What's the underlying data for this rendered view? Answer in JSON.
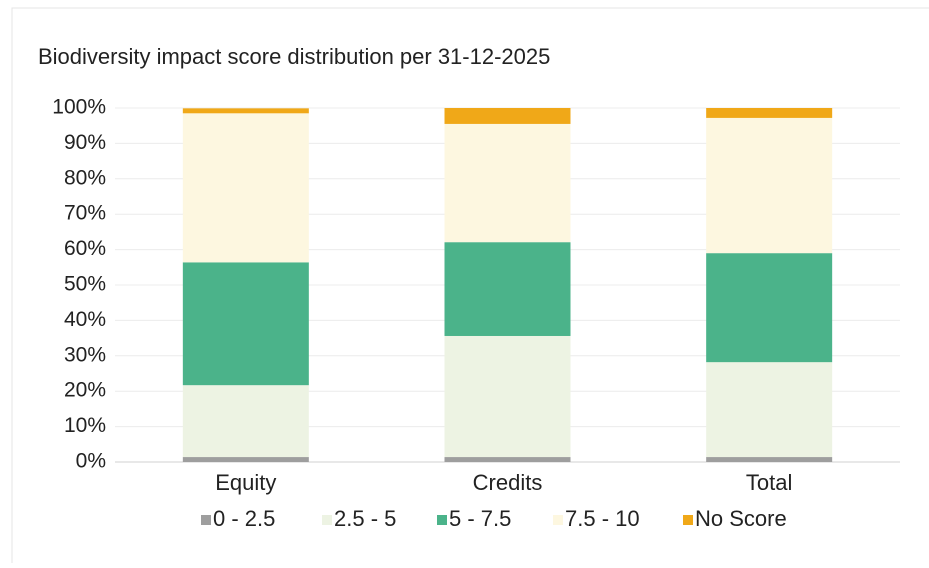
{
  "chart_data": {
    "type": "stacked_bar",
    "title": "Biodiversity impact score distribution per 31-12-2025",
    "categories": [
      "Equity",
      "Credits",
      "Total"
    ],
    "series": [
      {
        "name": "0 - 2.5",
        "color": "#9e9e9e",
        "values": [
          1.4,
          1.4,
          1.4
        ]
      },
      {
        "name": "2.5 - 5",
        "color": "#edf3e3",
        "values": [
          20.3,
          34.2,
          26.8
        ]
      },
      {
        "name": "5 - 7.5",
        "color": "#4bb38a",
        "values": [
          34.7,
          26.5,
          30.8
        ]
      },
      {
        "name": "7.5 - 10",
        "color": "#fdf7e0",
        "values": [
          42.1,
          33.4,
          38.2
        ]
      },
      {
        "name": "No Score",
        "color": "#f0a818",
        "values": [
          1.4,
          4.5,
          2.8
        ]
      }
    ],
    "ylim": [
      0,
      100
    ],
    "yticks": [
      {
        "value": 0,
        "label": "0%"
      },
      {
        "value": 10,
        "label": "10%"
      },
      {
        "value": 20,
        "label": "20%"
      },
      {
        "value": 30,
        "label": "30%"
      },
      {
        "value": 40,
        "label": "40%"
      },
      {
        "value": 50,
        "label": "50%"
      },
      {
        "value": 60,
        "label": "60%"
      },
      {
        "value": 70,
        "label": "70%"
      },
      {
        "value": 80,
        "label": "80%"
      },
      {
        "value": 90,
        "label": "90%"
      },
      {
        "value": 100,
        "label": "100%"
      }
    ],
    "grid": true,
    "legend": "bottom"
  }
}
